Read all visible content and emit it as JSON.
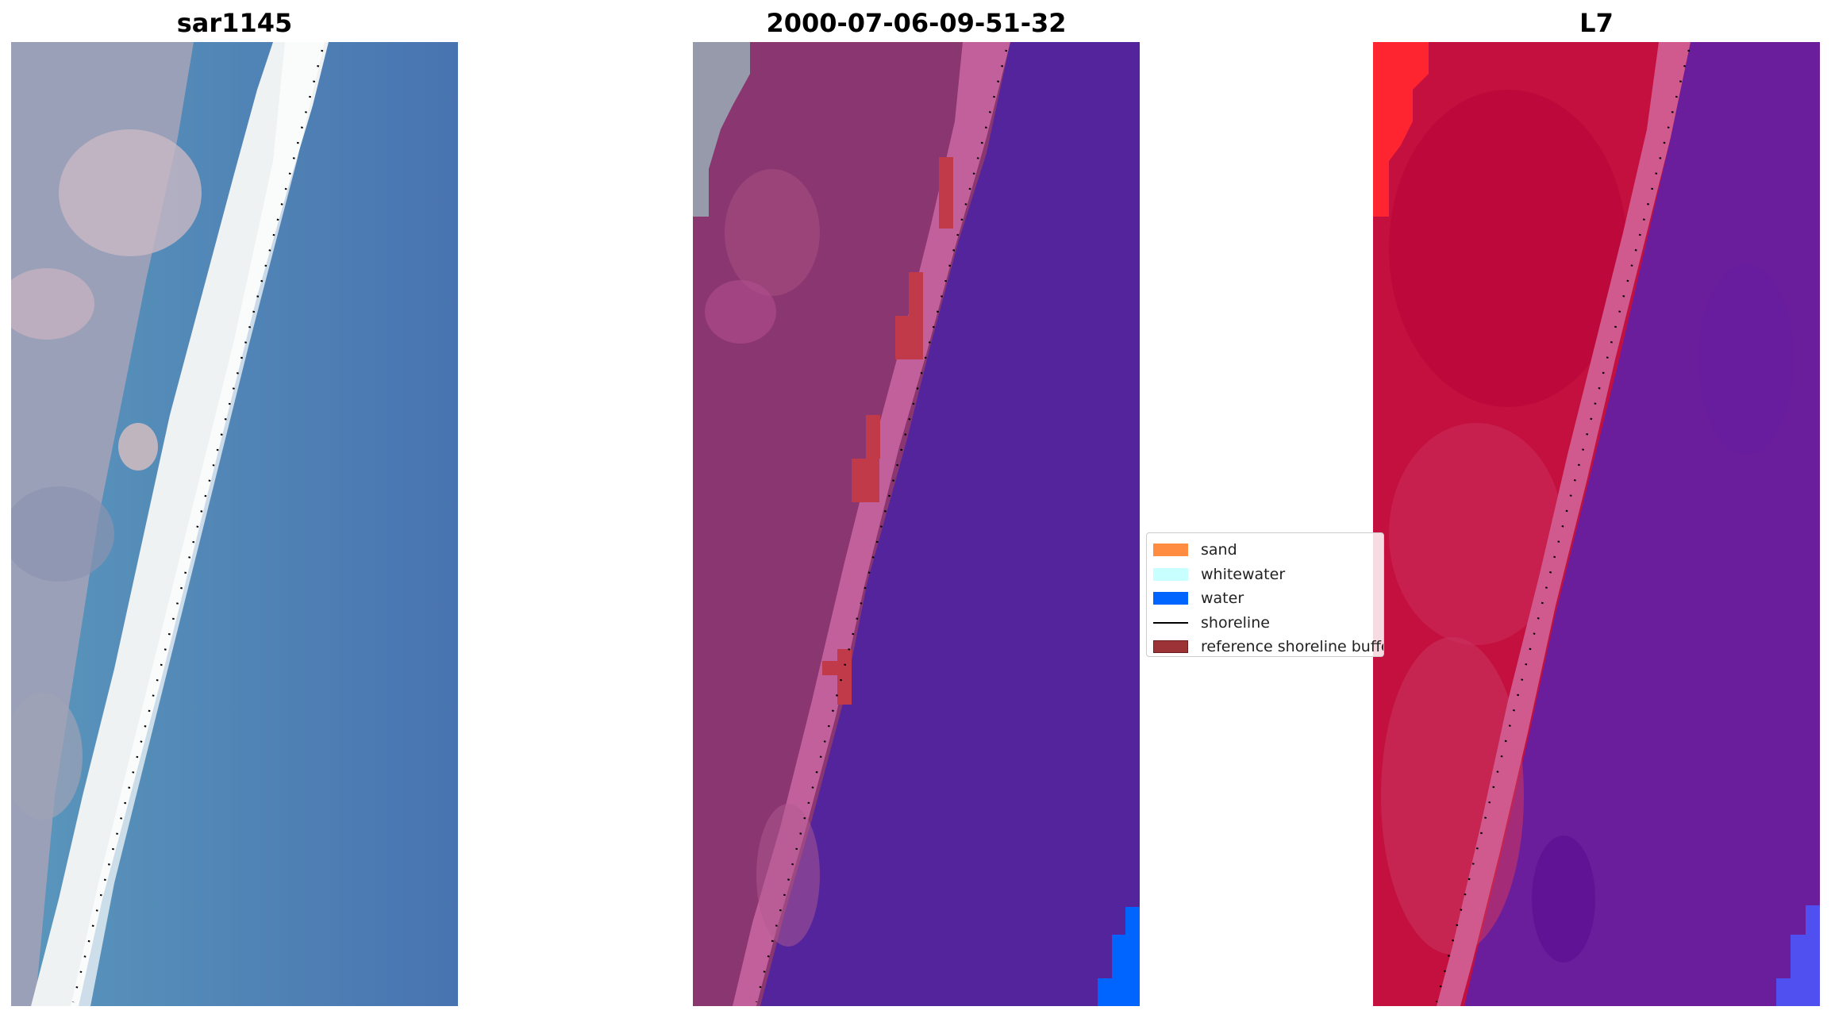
{
  "panels": [
    {
      "title": "sar1145"
    },
    {
      "title": "2000-07-06-09-51-32"
    },
    {
      "title": "L7"
    }
  ],
  "legend": {
    "items": [
      {
        "label": "sand",
        "color": "#ff8c40",
        "kind": "patch"
      },
      {
        "label": "whitewater",
        "color": "#c8ffff",
        "kind": "patch"
      },
      {
        "label": "water",
        "color": "#0064ff",
        "kind": "patch"
      },
      {
        "label": "shoreline",
        "color": "#000000",
        "kind": "line"
      },
      {
        "label": "reference shoreline buffer",
        "color": "#9b3337",
        "kind": "patch"
      }
    ]
  },
  "colors": {
    "ocean_rgb": "#4a80b6",
    "beach_white": "#f1f4f4",
    "land_gray": "#9aa0b8",
    "water_class": "#53249b",
    "land_class": "#8a3670",
    "sand_class": "#c2609c",
    "buffer": "#c03a4a",
    "nir_land": "#c3103e",
    "nir_water": "#6b1e9b"
  }
}
